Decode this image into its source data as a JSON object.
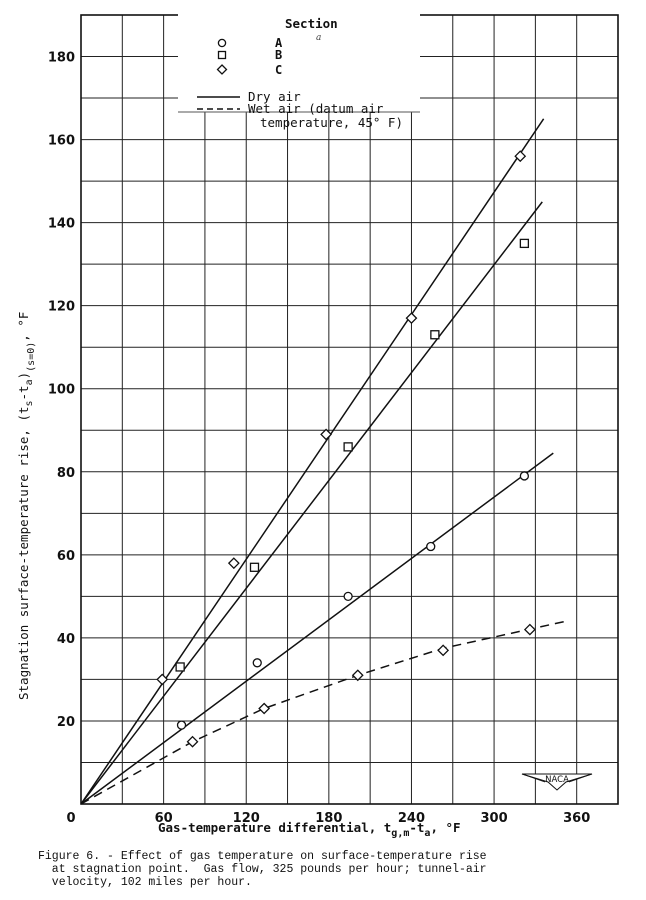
{
  "chart_data": {
    "type": "scatter",
    "title": "Figure 6. - Effect of gas temperature on surface-temperature rise at stagnation point. Gas flow, 325 pounds per hour; tunnel-air velocity, 102 miles per hour.",
    "xlabel": "Gas-temperature differential, t_g,m - t_a, °F",
    "ylabel": "Stagnation surface-temperature rise, (t_s - t_a)(s=0), °F",
    "xlim": [
      0,
      390
    ],
    "ylim": [
      0,
      190
    ],
    "x_ticks": [
      0,
      60,
      120,
      180,
      240,
      300,
      360
    ],
    "y_ticks": [
      0,
      20,
      40,
      60,
      80,
      100,
      120,
      140,
      160,
      180
    ],
    "grid": {
      "x_step": 30,
      "y_step": 10,
      "on": true
    },
    "legend_position": "top-center",
    "series": [
      {
        "name": "Section A",
        "marker": "circle",
        "points": [
          [
            73,
            19
          ],
          [
            128,
            34
          ],
          [
            194,
            50
          ],
          [
            254,
            62
          ],
          [
            322,
            79
          ]
        ]
      },
      {
        "name": "Section B",
        "marker": "square",
        "points": [
          [
            72,
            33
          ],
          [
            126,
            57
          ],
          [
            194,
            86
          ],
          [
            257,
            113
          ],
          [
            322,
            135
          ]
        ]
      },
      {
        "name": "Section C",
        "marker": "diamond",
        "points": [
          [
            59,
            30
          ],
          [
            111,
            58
          ],
          [
            178,
            89
          ],
          [
            240,
            117
          ],
          [
            319,
            156
          ],
          [
            81,
            15
          ],
          [
            133,
            23
          ],
          [
            201,
            31
          ],
          [
            263,
            37
          ],
          [
            326,
            42
          ]
        ]
      }
    ],
    "fit_lines": [
      {
        "name": "Dry air - Section C",
        "style": "solid",
        "points": [
          [
            0,
            0
          ],
          [
            336,
            165
          ]
        ]
      },
      {
        "name": "Dry air - Section B",
        "style": "solid",
        "points": [
          [
            0,
            0
          ],
          [
            335,
            145
          ]
        ]
      },
      {
        "name": "Dry air - Section A",
        "style": "solid",
        "points": [
          [
            0,
            0
          ],
          [
            343,
            84.5
          ]
        ]
      },
      {
        "name": "Wet air - Section C",
        "style": "dashed",
        "points": [
          [
            0,
            0
          ],
          [
            81,
            15
          ],
          [
            133,
            23
          ],
          [
            201,
            31
          ],
          [
            263,
            37.5
          ],
          [
            352,
            44
          ]
        ]
      }
    ]
  },
  "legend": {
    "section_title": "Section",
    "sections": [
      {
        "marker": "circle",
        "label": "A"
      },
      {
        "marker": "square",
        "label": "B"
      },
      {
        "marker": "diamond",
        "label": "C"
      }
    ],
    "dry_label": "Dry air",
    "wet_label_line1": "Wet air (datum air",
    "wet_label_line2": "temperature, 45° F)"
  },
  "axes": {
    "x_title_main": "Gas-temperature differential, t",
    "x_title_sub1": "g,m",
    "x_title_mid": "-t",
    "x_title_sub2": "a",
    "x_title_units": ", °F",
    "y_title_main": "Stagnation surface-temperature rise, (t",
    "y_title_sub1": "s",
    "y_title_mid": "-t",
    "y_title_sub2": "a",
    "y_title_close": ")",
    "y_title_sub3": "(s=0)",
    "y_title_units": ", °F"
  },
  "logo": {
    "text": "NACA"
  },
  "caption": {
    "line1": "Figure 6. - Effect of gas temperature on surface-temperature rise",
    "line2": "  at stagnation point.  Gas flow, 325 pounds per hour; tunnel-air",
    "line3": "  velocity, 102 miles per hour."
  }
}
